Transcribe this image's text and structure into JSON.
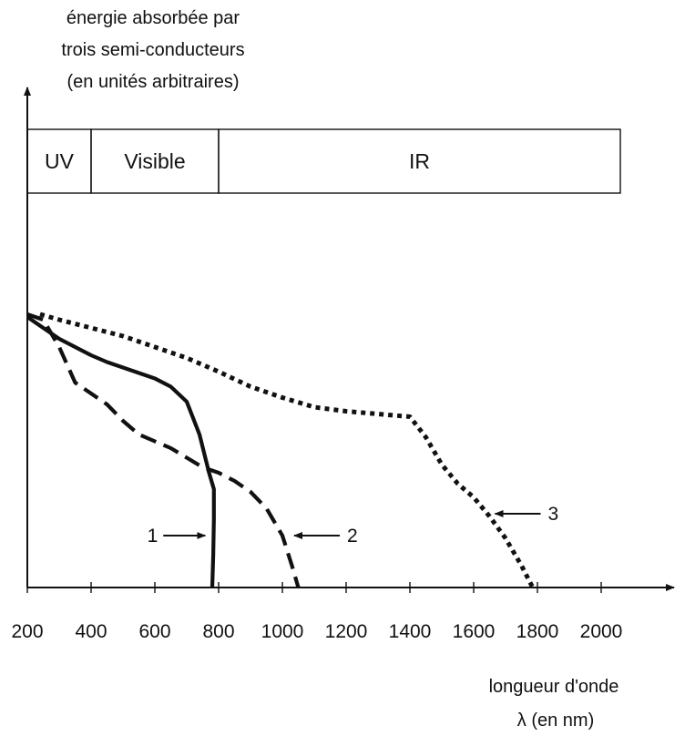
{
  "chart_data": {
    "type": "line",
    "ylabel": [
      "énergie absorbée par",
      "trois semi-conducteurs",
      "(en unités arbitraires)"
    ],
    "xlabel": [
      "longueur d'onde",
      "λ (en nm)"
    ],
    "x_ticks": [
      200,
      400,
      600,
      800,
      1000,
      1200,
      1400,
      1600,
      1800,
      2000
    ],
    "xlim": [
      200,
      2200
    ],
    "ylim": [
      0,
      10
    ],
    "grid": false,
    "legend": "none",
    "bands": [
      {
        "label": "UV",
        "from": 200,
        "to": 400
      },
      {
        "label": "Visible",
        "from": 400,
        "to": 800
      },
      {
        "label": "IR",
        "from": 800,
        "to": 2060
      }
    ],
    "series": [
      {
        "name": "1",
        "style": "solid",
        "points": [
          [
            200,
            9.9
          ],
          [
            250,
            9.5
          ],
          [
            300,
            9.1
          ],
          [
            350,
            8.8
          ],
          [
            400,
            8.5
          ],
          [
            450,
            8.25
          ],
          [
            500,
            8.05
          ],
          [
            550,
            7.85
          ],
          [
            600,
            7.65
          ],
          [
            650,
            7.35
          ],
          [
            700,
            6.8
          ],
          [
            740,
            5.6
          ],
          [
            770,
            4.2
          ],
          [
            785,
            3.6
          ],
          [
            785,
            2.5
          ],
          [
            783,
            1.2
          ],
          [
            780,
            0.0
          ]
        ],
        "label_at": [
          775,
          1.9
        ]
      },
      {
        "name": "2",
        "style": "dashed",
        "points": [
          [
            200,
            10.0
          ],
          [
            250,
            9.8
          ],
          [
            300,
            8.8
          ],
          [
            350,
            7.5
          ],
          [
            400,
            7.1
          ],
          [
            450,
            6.7
          ],
          [
            500,
            6.1
          ],
          [
            550,
            5.6
          ],
          [
            600,
            5.35
          ],
          [
            650,
            5.1
          ],
          [
            700,
            4.75
          ],
          [
            750,
            4.4
          ],
          [
            800,
            4.2
          ],
          [
            850,
            3.9
          ],
          [
            900,
            3.5
          ],
          [
            950,
            2.9
          ],
          [
            1000,
            1.9
          ],
          [
            1030,
            0.8
          ],
          [
            1050,
            0.0
          ]
        ],
        "label_at": [
          1020,
          1.9
        ]
      },
      {
        "name": "3",
        "style": "dotted",
        "points": [
          [
            240,
            10.0
          ],
          [
            300,
            9.8
          ],
          [
            400,
            9.5
          ],
          [
            500,
            9.2
          ],
          [
            600,
            8.8
          ],
          [
            700,
            8.4
          ],
          [
            800,
            7.9
          ],
          [
            900,
            7.35
          ],
          [
            1000,
            6.95
          ],
          [
            1100,
            6.6
          ],
          [
            1200,
            6.45
          ],
          [
            1300,
            6.35
          ],
          [
            1400,
            6.25
          ],
          [
            1450,
            5.5
          ],
          [
            1500,
            4.5
          ],
          [
            1550,
            3.8
          ],
          [
            1600,
            3.3
          ],
          [
            1650,
            2.6
          ],
          [
            1700,
            1.8
          ],
          [
            1750,
            0.8
          ],
          [
            1785,
            0.0
          ]
        ],
        "label_at": [
          1650,
          2.7
        ]
      }
    ]
  }
}
